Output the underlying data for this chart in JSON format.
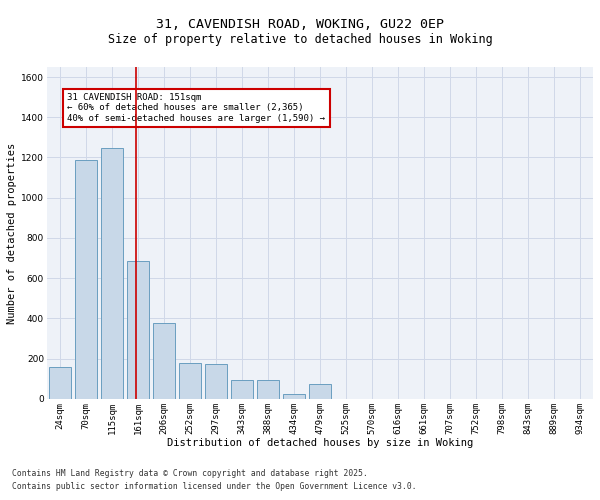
{
  "title_line1": "31, CAVENDISH ROAD, WOKING, GU22 0EP",
  "title_line2": "Size of property relative to detached houses in Woking",
  "xlabel": "Distribution of detached houses by size in Woking",
  "ylabel": "Number of detached properties",
  "categories": [
    "24sqm",
    "70sqm",
    "115sqm",
    "161sqm",
    "206sqm",
    "252sqm",
    "297sqm",
    "343sqm",
    "388sqm",
    "434sqm",
    "479sqm",
    "525sqm",
    "570sqm",
    "616sqm",
    "661sqm",
    "707sqm",
    "752sqm",
    "798sqm",
    "843sqm",
    "889sqm",
    "934sqm"
  ],
  "values": [
    160,
    1185,
    1245,
    685,
    375,
    180,
    175,
    95,
    95,
    25,
    75,
    0,
    0,
    0,
    0,
    0,
    0,
    0,
    0,
    0,
    0
  ],
  "bar_color": "#c8d8e8",
  "bar_edge_color": "#6a9ec0",
  "grid_color": "#d0d8e8",
  "background_color": "#eef2f8",
  "marker_line_color": "#cc0000",
  "annotation_text": "31 CAVENDISH ROAD: 151sqm\n← 60% of detached houses are smaller (2,365)\n40% of semi-detached houses are larger (1,590) →",
  "annotation_box_color": "#cc0000",
  "ylim": [
    0,
    1650
  ],
  "yticks": [
    0,
    200,
    400,
    600,
    800,
    1000,
    1200,
    1400,
    1600
  ],
  "footer_line1": "Contains HM Land Registry data © Crown copyright and database right 2025.",
  "footer_line2": "Contains public sector information licensed under the Open Government Licence v3.0.",
  "title_fontsize": 9.5,
  "subtitle_fontsize": 8.5,
  "axis_label_fontsize": 7.5,
  "tick_fontsize": 6.5,
  "annotation_fontsize": 6.5,
  "footer_fontsize": 5.8
}
